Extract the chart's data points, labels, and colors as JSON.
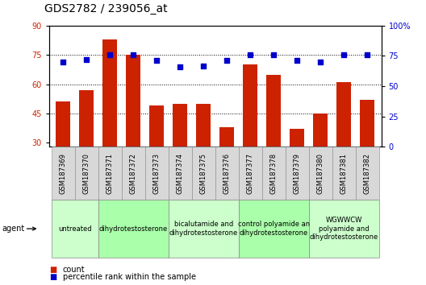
{
  "title": "GDS2782 / 239056_at",
  "samples": [
    "GSM187369",
    "GSM187370",
    "GSM187371",
    "GSM187372",
    "GSM187373",
    "GSM187374",
    "GSM187375",
    "GSM187376",
    "GSM187377",
    "GSM187378",
    "GSM187379",
    "GSM187380",
    "GSM187381",
    "GSM187382"
  ],
  "counts": [
    51,
    57,
    83,
    75,
    49,
    50,
    50,
    38,
    70,
    65,
    37,
    45,
    61,
    52
  ],
  "percentiles": [
    70,
    72,
    76,
    76,
    71,
    66,
    67,
    71,
    76,
    76,
    71,
    70,
    76,
    76
  ],
  "ylim_left": [
    28,
    90
  ],
  "ylim_right": [
    0,
    100
  ],
  "yticks_left": [
    30,
    45,
    60,
    75,
    90
  ],
  "yticks_right": [
    0,
    25,
    50,
    75,
    100
  ],
  "bar_color": "#cc2200",
  "dot_color": "#0000cc",
  "hline_y_left": [
    45,
    60,
    75
  ],
  "agent_groups": [
    {
      "label": "untreated",
      "start": 0,
      "end": 2,
      "color": "#ccffcc"
    },
    {
      "label": "dihydrotestosterone",
      "start": 2,
      "end": 5,
      "color": "#aaffaa"
    },
    {
      "label": "bicalutamide and\ndihydrotestosterone",
      "start": 5,
      "end": 8,
      "color": "#ccffcc"
    },
    {
      "label": "control polyamide an\ndihydrotestosterone",
      "start": 8,
      "end": 11,
      "color": "#aaffaa"
    },
    {
      "label": "WGWWCW\npolyamide and\ndihydrotestosterone",
      "start": 11,
      "end": 14,
      "color": "#ccffcc"
    }
  ],
  "background_color": "#ffffff",
  "title_fontsize": 10,
  "tick_fontsize": 7,
  "sample_label_fontsize": 6,
  "agent_label_fontsize": 6,
  "legend_fontsize": 7,
  "sample_box_color": "#d8d8d8",
  "sample_box_edge": "#888888"
}
